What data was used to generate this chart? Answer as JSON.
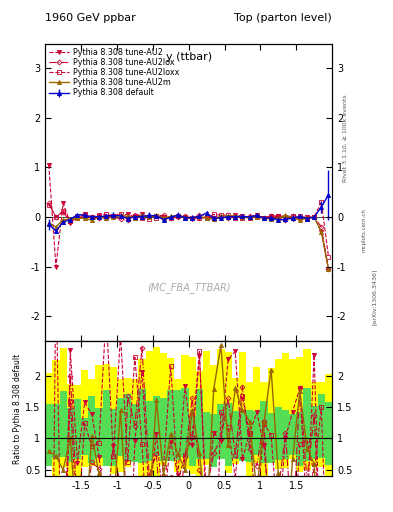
{
  "title_left": "1960 GeV ppbar",
  "title_right": "Top (parton level)",
  "x_label": "y (ttbar)",
  "y_label_ratio": "Ratio to Pythia 8.308 default",
  "right_label_top": "Rivet 3.1.10, ≥ 100k events",
  "right_label_bottom": "[arXiv:1306.3436]",
  "right_label_mid": "mcplots.cern.ch",
  "watermark": "(MC_FBA_TTBAR)",
  "xlim": [
    -2.0,
    2.0
  ],
  "ylim_main": [
    -2.5,
    3.5
  ],
  "ylim_ratio": [
    0.4,
    2.55
  ],
  "x_ticks": [
    -1.5,
    -1.0,
    -0.5,
    0.0,
    0.5,
    1.0,
    1.5
  ],
  "x_tick_labels": [
    "-1.5",
    "-1",
    "-0.5",
    "0",
    "0.5",
    "1",
    "1.5"
  ],
  "lines": [
    {
      "label": "Pythia 8.308 default",
      "color": "#0000cc",
      "linestyle": "-",
      "marker": "^",
      "markersize": 3,
      "linewidth": 1.0,
      "zorder": 5,
      "fillmarker": true
    },
    {
      "label": "Pythia 8.308 tune-AU2",
      "color": "#cc0033",
      "linestyle": "--",
      "marker": "v",
      "markersize": 3,
      "linewidth": 0.8,
      "zorder": 4,
      "fillmarker": true
    },
    {
      "label": "Pythia 8.308 tune-AU2lox",
      "color": "#cc0033",
      "linestyle": "-.",
      "marker": "D",
      "markersize": 2.5,
      "linewidth": 0.8,
      "zorder": 3,
      "fillmarker": false
    },
    {
      "label": "Pythia 8.308 tune-AU2loxx",
      "color": "#cc0033",
      "linestyle": "--",
      "marker": "s",
      "markersize": 2.5,
      "linewidth": 0.8,
      "zorder": 3,
      "fillmarker": false
    },
    {
      "label": "Pythia 8.308 tune-AU2m",
      "color": "#996600",
      "linestyle": "-",
      "marker": "^",
      "markersize": 3,
      "linewidth": 1.0,
      "zorder": 4,
      "fillmarker": true
    }
  ],
  "background_color": "#ffffff",
  "green_band_lo": 0.5,
  "green_band_hi": 1.5,
  "yellow_band_lo": 0.3,
  "yellow_band_hi": 2.5,
  "ratio_line": 1.0,
  "n_bins": 40
}
